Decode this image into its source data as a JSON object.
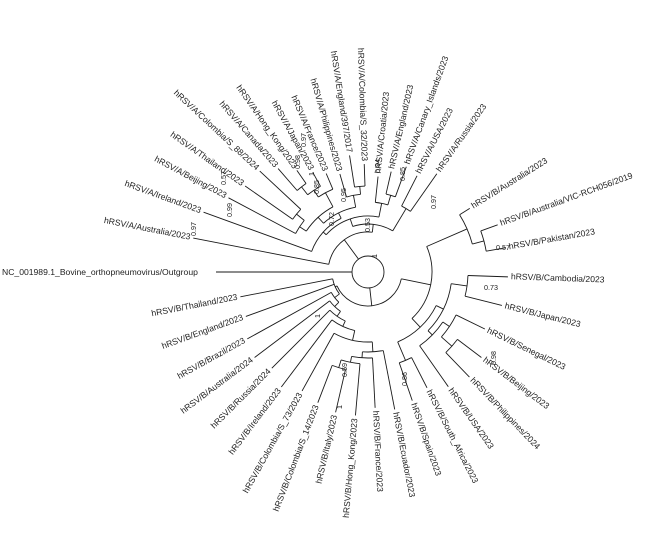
{
  "tree": {
    "outgroup": "NC_001989.1_Bovine_orthopneumovirus/Outgroup",
    "colors": {
      "default": "#222222",
      "purple": "#9b59d6",
      "red": "#e0101e"
    },
    "leaves": [
      {
        "label": "hRSV/A/Australia/2023",
        "color": "default"
      },
      {
        "label": "hRSV/A/Ireland/2023",
        "color": "default"
      },
      {
        "label": "hRSV/A/Beijing/2023",
        "color": "default"
      },
      {
        "label": "hRSV/A/Thailand/2023",
        "color": "default"
      },
      {
        "label": "hRSV/A/Colombia/S_88/2024",
        "color": "purple"
      },
      {
        "label": "hRSV/A/Canada/2023",
        "color": "default"
      },
      {
        "label": "hRSV/A/Hong_Kong/2023",
        "color": "default"
      },
      {
        "label": "hRSV/A/Japan/2023",
        "color": "default"
      },
      {
        "label": "hRSV/A/France/2023",
        "color": "default"
      },
      {
        "label": "hRSV/A/Philippines/2023",
        "color": "default"
      },
      {
        "label": "hRSV/A/England/397/2017",
        "color": "red"
      },
      {
        "label": "hRSV/A/Colombia/S_32/2023",
        "color": "purple"
      },
      {
        "label": "hRSV/A/Croatia/2023",
        "color": "default"
      },
      {
        "label": "hRSV/A/England/2023",
        "color": "default"
      },
      {
        "label": "hRSV/A/Canary_Islands/2023",
        "color": "default"
      },
      {
        "label": "hRSV/A/USA/2023",
        "color": "default"
      },
      {
        "label": "hRSV/A/Russia/2023",
        "color": "default"
      },
      {
        "label": "hRSV/B/Australia/2023",
        "color": "default"
      },
      {
        "label": "hRSV/B/Australia/VIC-RCH056/2019",
        "color": "red"
      },
      {
        "label": "hRSV/B/Pakistan/2023",
        "color": "default"
      },
      {
        "label": "hRSV/B/Cambodia/2023",
        "color": "default"
      },
      {
        "label": "hRSV/B/Japan/2023",
        "color": "default"
      },
      {
        "label": "hRSV/B/Senegal/2023",
        "color": "default"
      },
      {
        "label": "hRSV/B/Beijing/2023",
        "color": "default"
      },
      {
        "label": "hRSV/B/Philippines/2024",
        "color": "default"
      },
      {
        "label": "hRSV/B/USA/2023",
        "color": "default"
      },
      {
        "label": "hRSV/B/South_Africa/2023",
        "color": "default"
      },
      {
        "label": "hRSV/B/Spain/2023",
        "color": "default"
      },
      {
        "label": "hRSV/B/Ecuador/2023",
        "color": "default"
      },
      {
        "label": "hRSV/B/France/2023",
        "color": "default"
      },
      {
        "label": "hRSV/B/Hong_Kong/2023",
        "color": "default"
      },
      {
        "label": "hRSV/B/Italy/2023",
        "color": "default"
      },
      {
        "label": "hRSV/B/Colombia/S_14/2023",
        "color": "purple"
      },
      {
        "label": "hRSV/B/Colombia/S_73/2023",
        "color": "purple"
      },
      {
        "label": "hRSV/B/Ireland/2023",
        "color": "default"
      },
      {
        "label": "hRSV/B/Russia/2024",
        "color": "default"
      },
      {
        "label": "hRSV/B/Australia/2024",
        "color": "default"
      },
      {
        "label": "hRSV/B/Brazil/2023",
        "color": "default"
      },
      {
        "label": "hRSV/B/England/2023",
        "color": "default"
      },
      {
        "label": "hRSV/B/Thailand/2023",
        "color": "default"
      }
    ],
    "support_values": [
      "0.97",
      "0.99",
      "0.57",
      "1",
      "0.98",
      "0.97",
      "0.85",
      "0.94",
      "0.95",
      "0.72",
      "0.85",
      "0.97",
      "0.53",
      "1",
      "0.57",
      "0.73",
      "0.98",
      "0.86",
      "0.59",
      "1",
      "1"
    ]
  }
}
